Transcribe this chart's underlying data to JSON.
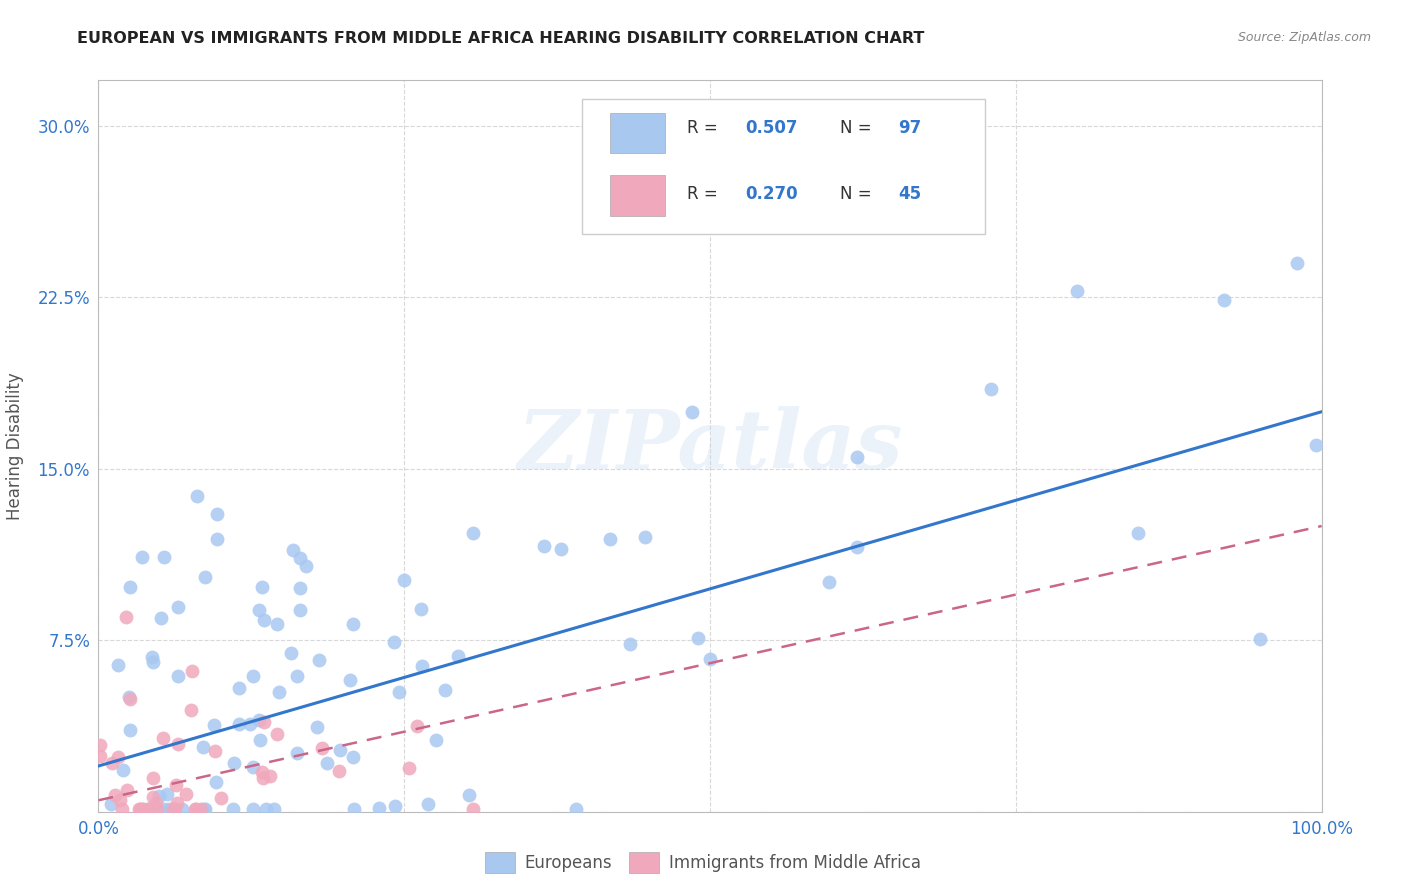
{
  "title": "EUROPEAN VS IMMIGRANTS FROM MIDDLE AFRICA HEARING DISABILITY CORRELATION CHART",
  "source": "Source: ZipAtlas.com",
  "ylabel": "Hearing Disability",
  "xlim": [
    0.0,
    1.0
  ],
  "ylim": [
    0.0,
    0.32
  ],
  "xticks": [
    0.0,
    0.25,
    0.5,
    0.75,
    1.0
  ],
  "yticks": [
    0.0,
    0.075,
    0.15,
    0.225,
    0.3
  ],
  "watermark": "ZIPatlas",
  "background_color": "#ffffff",
  "grid_color": "#d8d8d8",
  "blue_scatter_color": "#a8c8f0",
  "pink_scatter_color": "#f0a8bc",
  "blue_line_color": "#3377cc",
  "pink_line_color": "#cc6688",
  "title_color": "#222222",
  "axis_tick_color": "#3377cc",
  "R_blue": 0.507,
  "N_blue": 97,
  "R_pink": 0.27,
  "N_pink": 45,
  "blue_line_x0": 0.0,
  "blue_line_y0": 0.02,
  "blue_line_x1": 1.0,
  "blue_line_y1": 0.175,
  "pink_line_x0": 0.0,
  "pink_line_y0": 0.005,
  "pink_line_x1": 1.0,
  "pink_line_y1": 0.125
}
